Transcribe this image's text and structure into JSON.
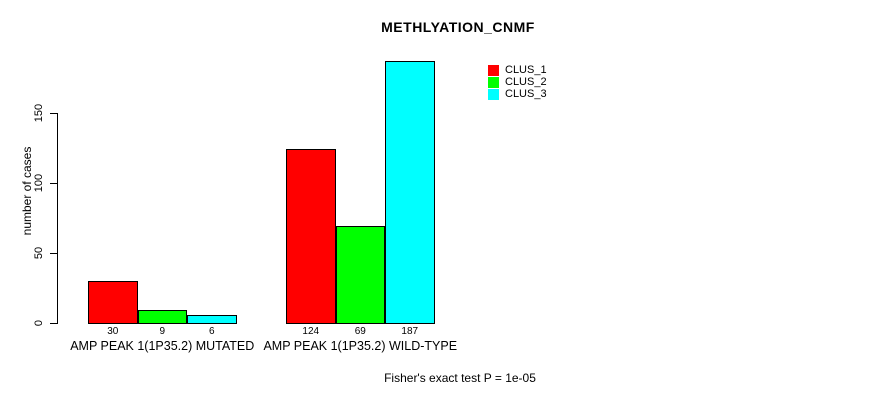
{
  "chart_data": {
    "type": "bar",
    "title": "METHLYATION_CNMF",
    "ylabel": "number of cases",
    "xlabel": "",
    "categories": [
      "AMP PEAK 1(1P35.2) MUTATED",
      "AMP PEAK 1(1P35.2) WILD-TYPE"
    ],
    "series": [
      {
        "name": "CLUS_1",
        "color": "#ff0000",
        "values": [
          30,
          124
        ]
      },
      {
        "name": "CLUS_2",
        "color": "#00ff00",
        "values": [
          9,
          69
        ]
      },
      {
        "name": "CLUS_3",
        "color": "#00ffff",
        "values": [
          6,
          187
        ]
      }
    ],
    "bar_value_labels": [
      "30",
      "9",
      "6",
      "124",
      "69",
      "187"
    ],
    "yticks": [
      0,
      50,
      100,
      150
    ],
    "ylim": [
      0,
      187
    ],
    "grid": false,
    "legend_position": "top-right",
    "annotation": "Fisher's exact test P = 1e-05"
  },
  "colors": {
    "background": "#ffffff",
    "axis": "#000000",
    "bar_border": "#000000",
    "clus_1": "#ff0000",
    "clus_2": "#00ff00",
    "clus_3": "#00ffff"
  }
}
